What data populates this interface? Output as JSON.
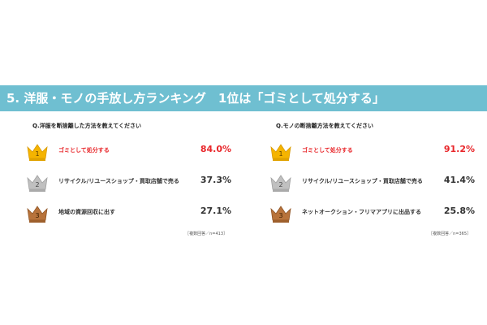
{
  "title": "5. 洋服・モノの手放し方ランキング　1位は「ゴミとして処分する」",
  "colors": {
    "banner": "#6fbfd1",
    "highlight": "#e8262a",
    "text": "#333333",
    "gold": "#f5b400",
    "silver": "#c0c0c0",
    "bronze": "#b8733b"
  },
  "chart_data": [
    {
      "type": "table",
      "question": "Q.洋服を断捨離した方法を教えてください",
      "rows": [
        {
          "rank": "1",
          "label": "ゴミとして処分する",
          "value": 84.0,
          "display": "84.0%"
        },
        {
          "rank": "2",
          "label": "リサイクル/リユースショップ・買取店舗で売る",
          "value": 37.3,
          "display": "37.3%"
        },
        {
          "rank": "3",
          "label": "地域の資源回収に出す",
          "value": 27.1,
          "display": "27.1%"
        }
      ],
      "note": "［複数回答／n=413］"
    },
    {
      "type": "table",
      "question": "Q.モノの断捨離方法を教えてください",
      "rows": [
        {
          "rank": "1",
          "label": "ゴミとして処分する",
          "value": 91.2,
          "display": "91.2%"
        },
        {
          "rank": "2",
          "label": "リサイクル/リユースショップ・買取店舗で売る",
          "value": 41.4,
          "display": "41.4%"
        },
        {
          "rank": "3",
          "label": "ネットオークション・フリマアプリに出品する",
          "value": 25.8,
          "display": "25.8%"
        }
      ],
      "note": "［複数回答／n=365］"
    }
  ]
}
